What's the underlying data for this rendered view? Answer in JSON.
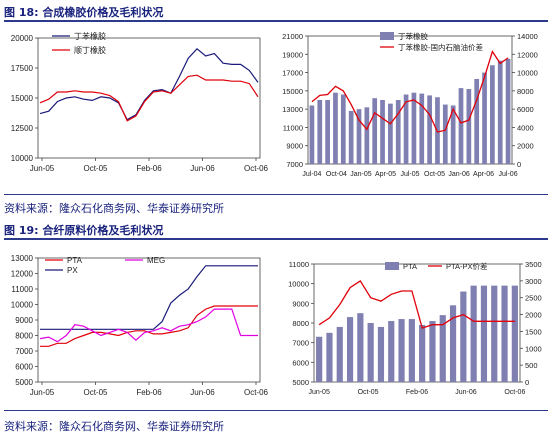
{
  "fig18": {
    "title": "图 18: 合成橡胶价格及毛利状况"
  },
  "fig19": {
    "title": "图 19: 合纤原料价格及毛利状况"
  },
  "source1": "资料来源：隆众石化商务网、华泰证券研究所",
  "source2": "资料来源：隆众石化商务网、华泰证券研究所",
  "chart_data": [
    {
      "type": "line",
      "ylim": [
        10000,
        20000
      ],
      "yticks": [
        10000,
        12500,
        15000,
        17500,
        20000
      ],
      "xticks": [
        "Jun-05",
        "Oct-05",
        "Feb-06",
        "Jun-06",
        "Oct-06"
      ],
      "series": [
        {
          "name": "丁苯橡胶",
          "color": "#1a1a7a",
          "values": [
            13700,
            13900,
            14700,
            15000,
            15100,
            14900,
            14800,
            15100,
            15000,
            14600,
            13200,
            13600,
            14800,
            15600,
            15700,
            15400,
            16800,
            18300,
            19100,
            18500,
            18700,
            17900,
            17800,
            17800,
            17300,
            16300
          ]
        },
        {
          "name": "顺丁橡胶",
          "color": "#e0000a",
          "values": [
            14600,
            14900,
            15500,
            15500,
            15600,
            15500,
            15500,
            15400,
            15200,
            14700,
            13100,
            13500,
            14700,
            15500,
            15600,
            15400,
            16100,
            16800,
            16900,
            16500,
            16500,
            16500,
            16400,
            16400,
            16200,
            15100
          ]
        }
      ]
    },
    {
      "type": "bar",
      "ylim": [
        7000,
        21000
      ],
      "yticks": [
        7000,
        9000,
        11000,
        13000,
        15000,
        17000,
        19000,
        21000
      ],
      "y2lim": [
        0,
        14000
      ],
      "y2ticks": [
        0,
        2000,
        4000,
        6000,
        8000,
        10000,
        12000,
        14000
      ],
      "xticks": [
        "Jul-04",
        "Oct-04",
        "Jan-05",
        "Apr-05",
        "Jul-05",
        "Oct-05",
        "Jan-06",
        "Apr-06",
        "Jul-06"
      ],
      "series": [
        {
          "name": "丁苯橡胶",
          "color": "#7f7fb2",
          "axis": "left",
          "values": [
            13400,
            14000,
            14000,
            14800,
            14600,
            12800,
            13000,
            13200,
            14200,
            14000,
            13600,
            14000,
            14600,
            14800,
            14700,
            14500,
            14300,
            13500,
            13400,
            15300,
            15200,
            16300,
            17000,
            17800,
            18300,
            18500
          ]
        },
        {
          "name": "丁苯橡胶-国内石脑油价差",
          "color": "#e0000a",
          "axis": "right",
          "values": [
            6800,
            7500,
            7600,
            8500,
            8000,
            6500,
            4800,
            3800,
            5600,
            5000,
            4400,
            5500,
            6800,
            7000,
            6400,
            5400,
            3500,
            3700,
            6000,
            4500,
            4800,
            7000,
            9500,
            12300,
            11000,
            11600
          ]
        }
      ]
    },
    {
      "type": "line",
      "ylim": [
        5000,
        13000
      ],
      "yticks": [
        5000,
        6000,
        7000,
        8000,
        9000,
        10000,
        11000,
        12000,
        13000
      ],
      "xticks": [
        "Jun-05",
        "Oct-05",
        "Feb-06",
        "Jun-06",
        "Oct-06"
      ],
      "series": [
        {
          "name": "PTA",
          "color": "#e0000a",
          "x": [
            0,
            1,
            2,
            3,
            4,
            5,
            6,
            7,
            8,
            9,
            10,
            11,
            12,
            13,
            14,
            15,
            16,
            17,
            18,
            19,
            20,
            21,
            22,
            23,
            24,
            25
          ],
          "values": [
            7300,
            7300,
            7500,
            7500,
            7800,
            8000,
            8200,
            8200,
            8100,
            8000,
            8200,
            8300,
            8300,
            8100,
            8100,
            8200,
            8300,
            8500,
            9300,
            9700,
            9900,
            9900,
            9900,
            9900,
            9900,
            9900
          ]
        },
        {
          "name": "PX",
          "color": "#1a1a7a",
          "x": [
            0,
            1,
            2,
            3,
            4,
            5,
            6,
            7,
            8,
            9,
            10,
            11,
            12,
            13,
            14,
            15,
            16,
            17,
            18,
            19,
            20,
            21,
            22,
            23,
            24,
            25
          ],
          "values": [
            8400,
            8400,
            8400,
            8400,
            8400,
            8400,
            8400,
            8400,
            8400,
            8400,
            8400,
            8400,
            8400,
            8400,
            8900,
            10100,
            10600,
            11000,
            11800,
            12500,
            12500,
            12500,
            12500,
            12500,
            12500,
            12500
          ]
        },
        {
          "name": "MEG",
          "color": "#e000e0",
          "x": [
            0,
            1,
            2,
            3,
            4,
            5,
            6,
            7,
            8,
            9,
            10,
            11,
            12,
            13,
            14,
            15,
            16,
            17,
            18,
            19,
            20,
            21,
            22,
            23,
            24,
            25
          ],
          "values": [
            7800,
            7900,
            7600,
            8000,
            8700,
            8600,
            8300,
            8000,
            8200,
            8400,
            8200,
            7700,
            8200,
            8300,
            8500,
            8300,
            8600,
            8700,
            8900,
            9200,
            9700,
            9700,
            9700,
            8000,
            8000,
            8000
          ]
        }
      ]
    },
    {
      "type": "bar",
      "ylim": [
        5000,
        11000
      ],
      "yticks": [
        5000,
        6000,
        7000,
        8000,
        9000,
        10000,
        11000
      ],
      "y2lim": [
        0,
        3500
      ],
      "y2ticks": [
        0,
        500,
        1000,
        1500,
        2000,
        2500,
        3000,
        3500
      ],
      "xticks": [
        "Jun-05",
        "Oct-05",
        "Feb-06",
        "Jun-06",
        "Oct-06"
      ],
      "series": [
        {
          "name": "PTA",
          "color": "#7f7fb2",
          "axis": "left",
          "values": [
            7300,
            7500,
            7800,
            8300,
            8500,
            8000,
            7800,
            8100,
            8200,
            8200,
            7900,
            8100,
            8400,
            8900,
            9600,
            9900,
            9900,
            9900,
            9900,
            9900
          ]
        },
        {
          "name": "PTA-PX价差",
          "color": "#e0000a",
          "axis": "right",
          "values": [
            1700,
            1900,
            2300,
            2800,
            3000,
            2500,
            2400,
            2600,
            2700,
            2700,
            1600,
            1700,
            1700,
            1900,
            2000,
            1800,
            1800,
            1800,
            1800,
            1800
          ]
        }
      ]
    }
  ]
}
